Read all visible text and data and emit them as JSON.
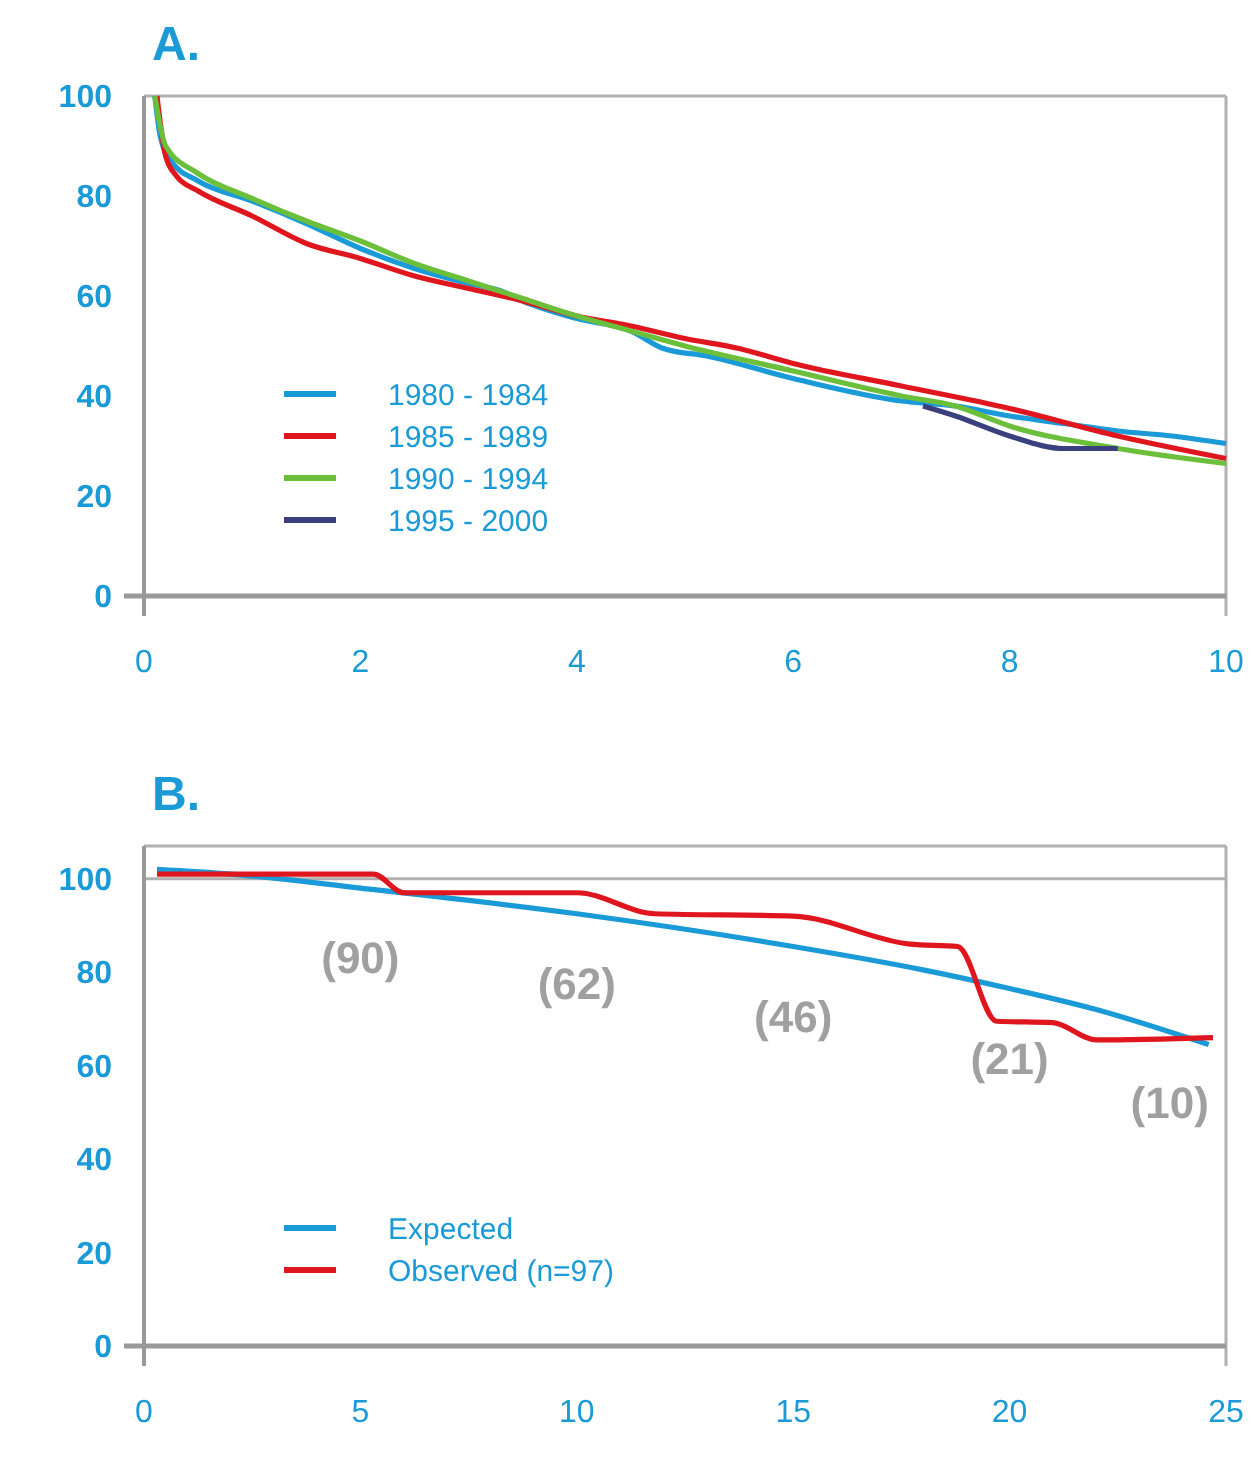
{
  "chart_data": [
    {
      "type": "line",
      "title": "A.",
      "xlim": [
        0,
        10
      ],
      "xticks": [
        0,
        2,
        4,
        6,
        8,
        10
      ],
      "ylim": [
        0,
        100
      ],
      "yticks": [
        0,
        20,
        40,
        60,
        80,
        100
      ],
      "grid": false,
      "legend": "bottom left",
      "series": [
        {
          "name": "1980 - 1984",
          "color": "#1a9ad6",
          "x": [
            0.1,
            0.15,
            0.25,
            0.5,
            1,
            1.5,
            2,
            2.5,
            3,
            3.3,
            3.5,
            4,
            4.5,
            4.8,
            5.2,
            6,
            7,
            7.5,
            8,
            8.5,
            9,
            9.5,
            10
          ],
          "values": [
            100,
            92,
            87,
            83,
            79,
            74.5,
            69.5,
            65.5,
            62.5,
            61,
            59,
            55.5,
            53,
            49.5,
            48,
            43.5,
            39,
            38,
            36,
            34.5,
            33,
            32,
            30.5
          ]
        },
        {
          "name": "1985 - 1989",
          "color": "#e0161e",
          "x": [
            0.12,
            0.2,
            0.3,
            0.5,
            1,
            1.5,
            2,
            2.5,
            3,
            3.5,
            4,
            4.5,
            5,
            5.5,
            6,
            7,
            8,
            9,
            10
          ],
          "values": [
            100,
            88,
            84,
            81,
            76,
            70.5,
            67.5,
            64,
            61.5,
            59,
            56,
            54,
            51.5,
            49.5,
            46.5,
            42,
            37.5,
            32,
            27.5
          ]
        },
        {
          "name": "1990 - 1994",
          "color": "#6bbf3a",
          "x": [
            0.1,
            0.2,
            0.5,
            1,
            1.5,
            2,
            2.5,
            3,
            3.5,
            4,
            4.5,
            5,
            6,
            7,
            7.5,
            8,
            9,
            10
          ],
          "values": [
            100,
            90,
            84.5,
            79.5,
            75,
            71,
            66.5,
            63,
            59.5,
            56,
            53,
            50,
            45,
            40,
            38,
            34,
            29.5,
            26.5
          ]
        },
        {
          "name": "1995 - 2000",
          "color": "#3a3f7d",
          "x": [
            7.2,
            7.5,
            8,
            8.5,
            9
          ],
          "values": [
            38,
            36,
            32,
            29.5,
            29.5
          ]
        }
      ]
    },
    {
      "type": "line",
      "title": "B.",
      "xlim": [
        0,
        25
      ],
      "xticks": [
        0,
        5,
        10,
        15,
        20,
        25
      ],
      "ylim": [
        0,
        107
      ],
      "yticks": [
        0,
        20,
        40,
        60,
        80,
        100
      ],
      "grid": false,
      "legend": "bottom left",
      "ref_lines": [
        {
          "axis": "y",
          "value": 100,
          "color": "#b0b0b0"
        }
      ],
      "annotations": [
        {
          "text": "(90)",
          "x": 5,
          "y": 98
        },
        {
          "text": "(62)",
          "x": 10,
          "y": 92.5
        },
        {
          "text": "(46)",
          "x": 15,
          "y": 85.5
        },
        {
          "text": "(21)",
          "x": 20,
          "y": 76.5
        },
        {
          "text": "(10)",
          "x": 23.7,
          "y": 67
        }
      ],
      "series": [
        {
          "name": "Expected",
          "color": "#1a9ad6",
          "x": [
            0.3,
            2,
            5,
            10,
            15,
            18,
            20,
            22,
            24.6
          ],
          "values": [
            102,
            101,
            98,
            92.5,
            85.5,
            80.5,
            76.5,
            72,
            64.5
          ]
        },
        {
          "name": "Observed (n=97)",
          "color": "#e0161e",
          "x": [
            0.3,
            5.3,
            6,
            10,
            11.8,
            15,
            17.7,
            18.8,
            19.7,
            21,
            22,
            24.7
          ],
          "values": [
            101,
            101,
            97,
            97,
            92.5,
            92,
            86,
            85.5,
            69.5,
            69.2,
            65.5,
            66
          ]
        }
      ]
    }
  ]
}
